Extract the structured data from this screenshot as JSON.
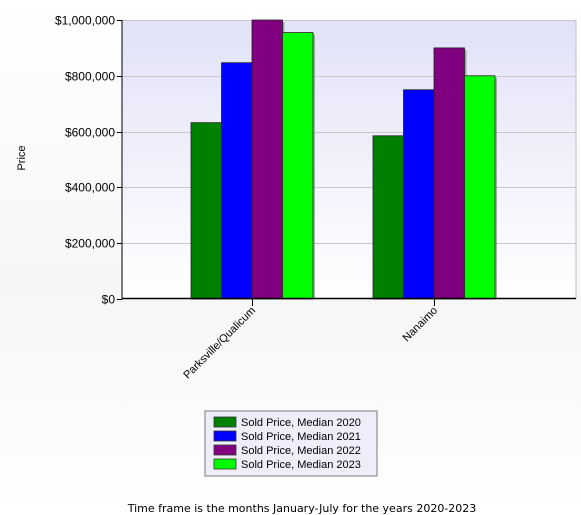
{
  "chart_data": {
    "type": "bar",
    "categories": [
      "Parksville/Qualicum",
      "Nanaimo"
    ],
    "series": [
      {
        "name": "Sold Price, Median 2020",
        "color": "#008000",
        "values": [
          632000,
          585000
        ]
      },
      {
        "name": "Sold Price, Median 2021",
        "color": "#0000ff",
        "values": [
          847000,
          750000
        ]
      },
      {
        "name": "Sold Price, Median 2022",
        "color": "#800080",
        "values": [
          1000000,
          900000
        ]
      },
      {
        "name": "Sold Price, Median 2023",
        "color": "#00ff00",
        "values": [
          955000,
          800000
        ]
      }
    ],
    "ylabel": "Price",
    "ylim": [
      0,
      1000000
    ],
    "yticks": [
      0,
      200000,
      400000,
      600000,
      800000,
      1000000
    ],
    "ytick_labels": [
      "$0",
      "$200,000",
      "$400,000",
      "$600,000",
      "$800,000",
      "$1,000,000"
    ],
    "grid": true,
    "legend_position": "bottom-center",
    "footnote": "Time frame is the months January-July for the years 2020-2023"
  }
}
